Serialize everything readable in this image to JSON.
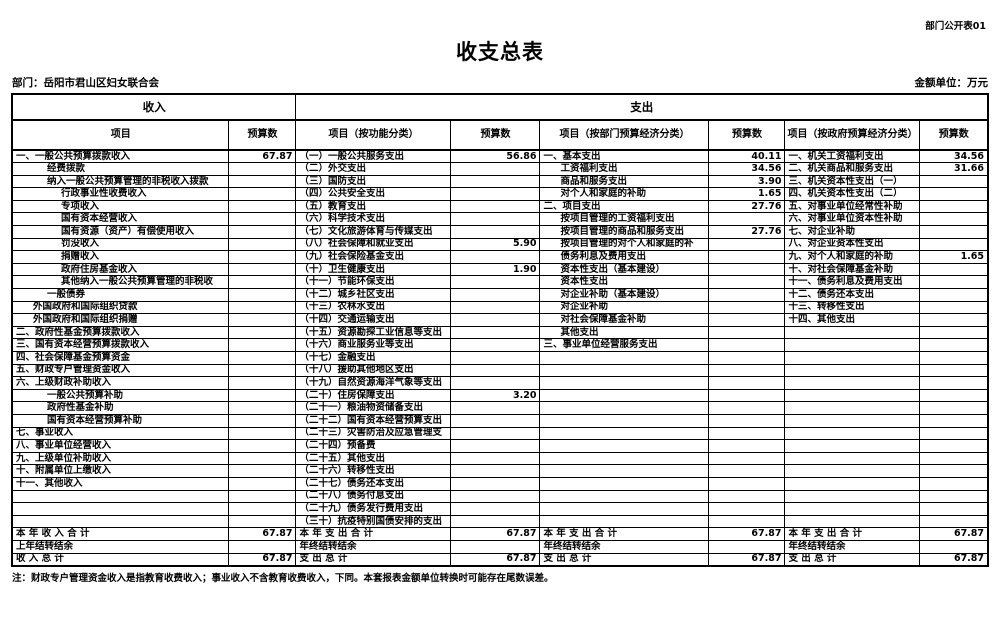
{
  "page": {
    "corner_label": "部门公开表01",
    "title": "收支总表",
    "department_label": "部门：岳阳市君山区妇女联合会",
    "unit_label": "金额单位：万元",
    "note": "注：财政专户管理资金收入是指教育收费收入；事业收入不含教育收费收入，下同。本套报表金额单位转换时可能存在尾数误差。"
  },
  "table": {
    "group_headers": [
      {
        "label": "收入",
        "colspan": 2
      },
      {
        "label": "支出",
        "colspan": 6
      }
    ],
    "col_headers": [
      "项目",
      "预算数",
      "项目（按功能分类）",
      "预算数",
      "项目（按部门预算经济分类）",
      "预算数",
      "项目（按政府预算经济分类）",
      "预算数"
    ],
    "summary_row_start": 30,
    "rows": [
      [
        [
          "一、一般公共预算拨款收入",
          0
        ],
        "67.87",
        [
          "（一）一般公共服务支出",
          0
        ],
        "56.86",
        [
          "一、基本支出",
          0
        ],
        "40.11",
        [
          "一、机关工资福利支出",
          0
        ],
        "34.56"
      ],
      [
        [
          "经费拨款",
          2
        ],
        "",
        [
          "（二）外交支出",
          0
        ],
        "",
        [
          "工资福利支出",
          1
        ],
        "34.56",
        [
          "二、机关商品和服务支出",
          0
        ],
        "31.66"
      ],
      [
        [
          "纳入一般公共预算管理的非税收入拨款",
          2
        ],
        "",
        [
          "（三）国防支出",
          0
        ],
        "",
        [
          "商品和服务支出",
          1
        ],
        "3.90",
        [
          "三、机关资本性支出（一）",
          0
        ],
        ""
      ],
      [
        [
          "行政事业性收费收入",
          3
        ],
        "",
        [
          "（四）公共安全支出",
          0
        ],
        "",
        [
          "对个人和家庭的补助",
          1
        ],
        "1.65",
        [
          "四、机关资本性支出（二）",
          0
        ],
        ""
      ],
      [
        [
          "专项收入",
          3
        ],
        "",
        [
          "（五）教育支出",
          0
        ],
        "",
        [
          "二、项目支出",
          0
        ],
        "27.76",
        [
          "五、对事业单位经常性补助",
          0
        ],
        ""
      ],
      [
        [
          "国有资本经营收入",
          3
        ],
        "",
        [
          "（六）科学技术支出",
          0
        ],
        "",
        [
          "按项目管理的工资福利支出",
          1
        ],
        "",
        [
          "六、对事业单位资本性补助",
          0
        ],
        ""
      ],
      [
        [
          "国有资源（资产）有偿使用收入",
          3
        ],
        "",
        [
          "（七）文化旅游体育与传媒支出",
          0
        ],
        "",
        [
          "按项目管理的商品和服务支出",
          1
        ],
        "27.76",
        [
          "七、对企业补助",
          0
        ],
        ""
      ],
      [
        [
          "罚没收入",
          3
        ],
        "",
        [
          "（八）社会保障和就业支出",
          0
        ],
        "5.90",
        [
          "按项目管理的对个人和家庭的补",
          1
        ],
        "",
        [
          "八、对企业资本性支出",
          0
        ],
        ""
      ],
      [
        [
          "捐赠收入",
          3
        ],
        "",
        [
          "（九）社会保险基金支出",
          0
        ],
        "",
        [
          "债务利息及费用支出",
          1
        ],
        "",
        [
          "九、对个人和家庭的补助",
          0
        ],
        "1.65"
      ],
      [
        [
          "政府住房基金收入",
          3
        ],
        "",
        [
          "（十）卫生健康支出",
          0
        ],
        "1.90",
        [
          "资本性支出（基本建设）",
          1
        ],
        "",
        [
          "十、对社会保障基金补助",
          0
        ],
        ""
      ],
      [
        [
          "其他纳入一般公共预算管理的非税收",
          3
        ],
        "",
        [
          "（十一）节能环保支出",
          0
        ],
        "",
        [
          "资本性支出",
          1
        ],
        "",
        [
          "十一、债务利息及费用支出",
          0
        ],
        ""
      ],
      [
        [
          "一般债券",
          2
        ],
        "",
        [
          "（十二）城乡社区支出",
          0
        ],
        "",
        [
          "对企业补助（基本建设）",
          1
        ],
        "",
        [
          "十二、债务还本支出",
          0
        ],
        ""
      ],
      [
        [
          "外国政府和国际组织贷款",
          1
        ],
        "",
        [
          "（十三）农林水支出",
          0
        ],
        "",
        [
          "对企业补助",
          1
        ],
        "",
        [
          "十三、转移性支出",
          0
        ],
        ""
      ],
      [
        [
          "外国政府和国际组织捐赠",
          1
        ],
        "",
        [
          "（十四）交通运输支出",
          0
        ],
        "",
        [
          "对社会保障基金补助",
          1
        ],
        "",
        [
          "十四、其他支出",
          0
        ],
        ""
      ],
      [
        [
          "二、政府性基金预算拨款收入",
          0
        ],
        "",
        [
          "（十五）资源勘探工业信息等支出",
          0
        ],
        "",
        [
          "其他支出",
          1
        ],
        "",
        "",
        ""
      ],
      [
        [
          "三、国有资本经营预算拨款收入",
          0
        ],
        "",
        [
          "（十六）商业服务业等支出",
          0
        ],
        "",
        [
          "三、事业单位经营服务支出",
          0
        ],
        "",
        "",
        ""
      ],
      [
        [
          "四、社会保障基金预算资金",
          0
        ],
        "",
        [
          "（十七）金融支出",
          0
        ],
        "",
        "",
        "",
        "",
        ""
      ],
      [
        [
          "五、财政专户管理资金收入",
          0
        ],
        "",
        [
          "（十八）援助其他地区支出",
          0
        ],
        "",
        "",
        "",
        "",
        ""
      ],
      [
        [
          "六、上级财政补助收入",
          0
        ],
        "",
        [
          "（十九）自然资源海洋气象等支出",
          0
        ],
        "",
        "",
        "",
        "",
        ""
      ],
      [
        [
          "一般公共预算补助",
          2
        ],
        "",
        [
          "（二十）住房保障支出",
          0
        ],
        "3.20",
        "",
        "",
        "",
        ""
      ],
      [
        [
          "政府性基金补助",
          2
        ],
        "",
        [
          "（二十一）粮油物资储备支出",
          0
        ],
        "",
        "",
        "",
        "",
        ""
      ],
      [
        [
          "国有资本经营预算补助",
          2
        ],
        "",
        [
          "（二十二）国有资本经营预算支出",
          0
        ],
        "",
        "",
        "",
        "",
        ""
      ],
      [
        [
          "七、事业收入",
          0
        ],
        "",
        [
          "（二十三）灾害防治及应急管理支",
          0
        ],
        "",
        "",
        "",
        "",
        ""
      ],
      [
        [
          "八、事业单位经营收入",
          0
        ],
        "",
        [
          "（二十四）预备费",
          0
        ],
        "",
        "",
        "",
        "",
        ""
      ],
      [
        [
          "九、上级单位补助收入",
          0
        ],
        "",
        [
          "（二十五）其他支出",
          0
        ],
        "",
        "",
        "",
        "",
        ""
      ],
      [
        [
          "十、附属单位上缴收入",
          0
        ],
        "",
        [
          "（二十六）转移性支出",
          0
        ],
        "",
        "",
        "",
        "",
        ""
      ],
      [
        [
          "十一、其他收入",
          0
        ],
        "",
        [
          "（二十七）债务还本支出",
          0
        ],
        "",
        "",
        "",
        "",
        ""
      ],
      [
        "",
        "",
        [
          "（二十八）债务付息支出",
          0
        ],
        "",
        "",
        "",
        "",
        ""
      ],
      [
        "",
        "",
        [
          "（二十九）债务发行费用支出",
          0
        ],
        "",
        "",
        "",
        "",
        ""
      ],
      [
        "",
        "",
        [
          "（三十）抗疫特别国债安排的支出",
          0
        ],
        "",
        "",
        "",
        "",
        ""
      ],
      [
        [
          "本 年 收 入 合 计",
          0
        ],
        "67.87",
        [
          "本 年 支 出 合 计",
          0
        ],
        "67.87",
        [
          "本 年 支 出 合 计",
          0
        ],
        "67.87",
        [
          "本 年 支 出 合 计",
          0
        ],
        "67.87"
      ],
      [
        [
          "上年结转结余",
          0
        ],
        "",
        [
          "年终结转结余",
          0
        ],
        "",
        [
          "年终结转结余",
          0
        ],
        "",
        [
          "年终结转结余",
          0
        ],
        ""
      ],
      [
        [
          "收 入 总 计",
          0
        ],
        "67.87",
        [
          "支 出 总 计",
          0
        ],
        "67.87",
        [
          "支 出 总 计",
          0
        ],
        "67.87",
        [
          "支 出 总 计",
          0
        ],
        "67.87"
      ]
    ]
  }
}
